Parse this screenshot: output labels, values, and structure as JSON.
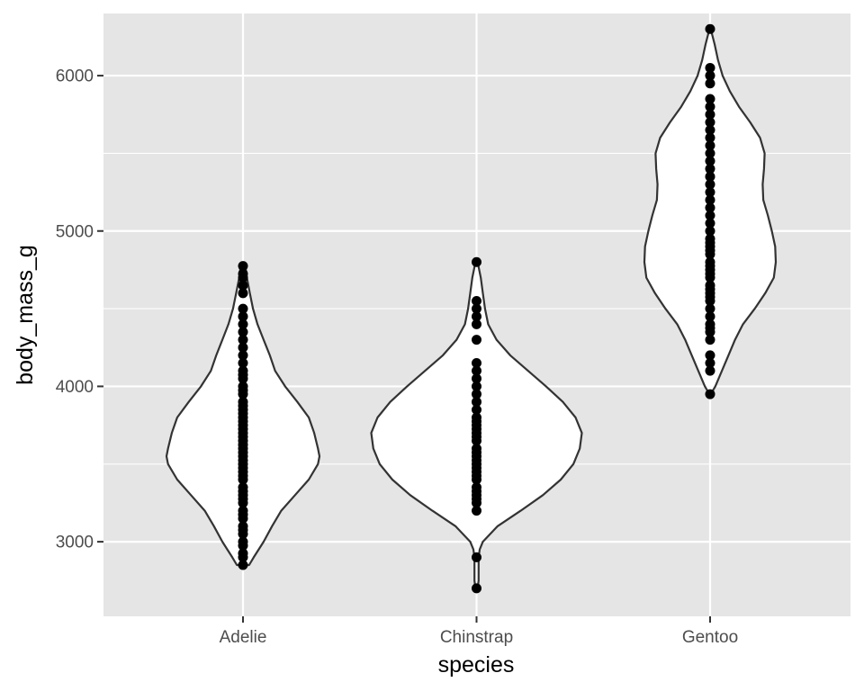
{
  "chart_data": {
    "type": "violin",
    "xlabel": "species",
    "ylabel": "body_mass_g",
    "ylim": [
      2520,
      6400
    ],
    "y_ticks": [
      3000,
      4000,
      5000,
      6000
    ],
    "y_minor_ticks": [
      2500,
      3500,
      4500,
      5500
    ],
    "categories": [
      "Adelie",
      "Chinstrap",
      "Gentoo"
    ],
    "grid": true,
    "colors": {
      "panel": "#e5e5e5",
      "grid": "#ffffff",
      "violin_fill": "#ffffff",
      "violin_stroke": "#333333",
      "points": "#000000"
    },
    "series": [
      {
        "name": "Adelie",
        "violin_profile": [
          [
            2850,
            0.08
          ],
          [
            2900,
            0.14
          ],
          [
            3000,
            0.27
          ],
          [
            3100,
            0.38
          ],
          [
            3200,
            0.5
          ],
          [
            3300,
            0.68
          ],
          [
            3400,
            0.86
          ],
          [
            3500,
            0.98
          ],
          [
            3550,
            1.0
          ],
          [
            3600,
            0.98
          ],
          [
            3700,
            0.93
          ],
          [
            3800,
            0.86
          ],
          [
            3900,
            0.71
          ],
          [
            4000,
            0.55
          ],
          [
            4100,
            0.42
          ],
          [
            4200,
            0.35
          ],
          [
            4300,
            0.27
          ],
          [
            4400,
            0.19
          ],
          [
            4500,
            0.13
          ],
          [
            4600,
            0.09
          ],
          [
            4700,
            0.05
          ],
          [
            4775,
            0.03
          ]
        ],
        "points": [
          2850,
          2900,
          2925,
          2975,
          3000,
          3050,
          3075,
          3100,
          3150,
          3175,
          3200,
          3250,
          3275,
          3300,
          3325,
          3350,
          3400,
          3425,
          3450,
          3475,
          3500,
          3525,
          3550,
          3575,
          3600,
          3625,
          3650,
          3675,
          3700,
          3725,
          3750,
          3775,
          3800,
          3825,
          3850,
          3875,
          3900,
          3950,
          3975,
          4000,
          4050,
          4075,
          4100,
          4150,
          4200,
          4250,
          4300,
          4350,
          4400,
          4450,
          4500,
          4600,
          4650,
          4700,
          4725,
          4775
        ]
      },
      {
        "name": "Chinstrap",
        "violin_profile": [
          [
            2700,
            0.01
          ],
          [
            2750,
            0.02
          ],
          [
            2800,
            0.02
          ],
          [
            2900,
            0.02
          ],
          [
            2950,
            0.03
          ],
          [
            3000,
            0.06
          ],
          [
            3100,
            0.2
          ],
          [
            3200,
            0.42
          ],
          [
            3300,
            0.63
          ],
          [
            3400,
            0.8
          ],
          [
            3500,
            0.92
          ],
          [
            3600,
            0.98
          ],
          [
            3700,
            1.0
          ],
          [
            3800,
            0.94
          ],
          [
            3900,
            0.82
          ],
          [
            4000,
            0.66
          ],
          [
            4100,
            0.49
          ],
          [
            4200,
            0.32
          ],
          [
            4300,
            0.19
          ],
          [
            4400,
            0.11
          ],
          [
            4500,
            0.08
          ],
          [
            4600,
            0.06
          ],
          [
            4700,
            0.04
          ],
          [
            4800,
            0.01
          ]
        ],
        "points": [
          2700,
          2900,
          3200,
          3250,
          3275,
          3300,
          3325,
          3350,
          3400,
          3425,
          3450,
          3475,
          3500,
          3525,
          3550,
          3575,
          3600,
          3650,
          3675,
          3700,
          3725,
          3750,
          3775,
          3800,
          3850,
          3900,
          3950,
          4000,
          4050,
          4100,
          4150,
          4300,
          4400,
          4450,
          4500,
          4550,
          4800
        ]
      },
      {
        "name": "Gentoo",
        "violin_profile": [
          [
            3950,
            0.01
          ],
          [
            4000,
            0.08
          ],
          [
            4100,
            0.18
          ],
          [
            4200,
            0.28
          ],
          [
            4300,
            0.38
          ],
          [
            4400,
            0.5
          ],
          [
            4500,
            0.68
          ],
          [
            4600,
            0.84
          ],
          [
            4700,
            0.97
          ],
          [
            4800,
            1.0
          ],
          [
            4900,
            0.99
          ],
          [
            5000,
            0.94
          ],
          [
            5100,
            0.88
          ],
          [
            5200,
            0.81
          ],
          [
            5300,
            0.8
          ],
          [
            5400,
            0.82
          ],
          [
            5500,
            0.83
          ],
          [
            5600,
            0.76
          ],
          [
            5700,
            0.61
          ],
          [
            5800,
            0.44
          ],
          [
            5900,
            0.3
          ],
          [
            6000,
            0.19
          ],
          [
            6100,
            0.12
          ],
          [
            6200,
            0.07
          ],
          [
            6300,
            0.01
          ]
        ],
        "points": [
          3950,
          4100,
          4150,
          4200,
          4300,
          4350,
          4375,
          4400,
          4450,
          4500,
          4550,
          4575,
          4600,
          4625,
          4650,
          4700,
          4725,
          4750,
          4775,
          4800,
          4850,
          4875,
          4900,
          4925,
          4950,
          5000,
          5050,
          5100,
          5150,
          5200,
          5250,
          5300,
          5350,
          5400,
          5450,
          5500,
          5550,
          5600,
          5650,
          5700,
          5750,
          5800,
          5850,
          5950,
          6000,
          6050,
          6300
        ]
      }
    ]
  }
}
